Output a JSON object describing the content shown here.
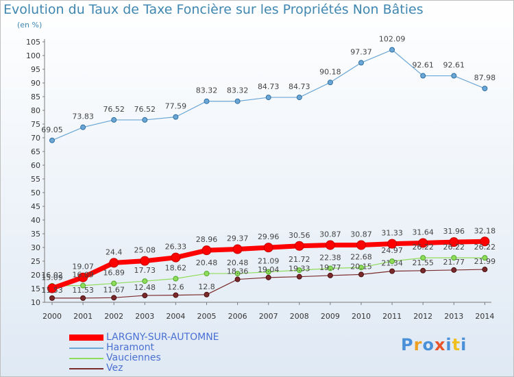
{
  "chart_data": {
    "type": "line",
    "title": "Evolution du Taux de Taxe Foncière sur les Propriétés Non Bâties",
    "subtitle": "(en %)",
    "x": [
      "2000",
      "2001",
      "2002",
      "2003",
      "2004",
      "2005",
      "2006",
      "2007",
      "2008",
      "2009",
      "2010",
      "2011",
      "2012",
      "2013",
      "2014"
    ],
    "yticks": [
      10,
      15,
      20,
      25,
      30,
      35,
      40,
      45,
      50,
      55,
      60,
      65,
      70,
      75,
      80,
      85,
      90,
      95,
      100,
      105
    ],
    "ylim": [
      10,
      105
    ],
    "grid": false,
    "legend_position": "bottom-left",
    "series": [
      {
        "name": "LARGNY-SUR-AUTOMNE",
        "color": "#ff0000",
        "values": [
          15.09,
          19.07,
          24.4,
          25.08,
          26.33,
          28.96,
          29.37,
          29.96,
          30.56,
          30.87,
          30.87,
          31.33,
          31.64,
          31.96,
          32.18
        ],
        "labels": [
          "15.09",
          "19.07",
          "24.4",
          "25.08",
          "26.33",
          "28.96",
          "29.37",
          "29.96",
          "30.56",
          "30.87",
          "30.87",
          "31.33",
          "31.64",
          "31.96",
          "32.18"
        ]
      },
      {
        "name": "Haramont",
        "color": "#6aa6d6",
        "values": [
          69.05,
          73.83,
          76.52,
          76.52,
          77.59,
          83.32,
          83.32,
          84.73,
          84.73,
          90.18,
          97.37,
          102.09,
          92.61,
          92.61,
          87.98
        ],
        "labels": [
          "69.05",
          "73.83",
          "76.52",
          "76.52",
          "77.59",
          "83.32",
          "83.32",
          "84.73",
          "84.73",
          "90.18",
          "97.37",
          "102.09",
          "92.61",
          "92.61",
          "87.98"
        ]
      },
      {
        "name": "Vauciennes",
        "color": "#8fdc5a",
        "values": [
          16.02,
          16.09,
          16.89,
          17.73,
          18.62,
          20.48,
          20.48,
          21.09,
          21.72,
          22.38,
          22.68,
          24.97,
          26.22,
          26.22,
          26.22
        ],
        "labels": [
          "16.02",
          "16.09",
          "16.89",
          "17.73",
          "18.62",
          "20.48",
          "20.48",
          "21.09",
          "21.72",
          "22.38",
          "22.68",
          "24.97",
          "26.22",
          "26.22",
          "26.22"
        ]
      },
      {
        "name": "Vez",
        "color": "#7a2a2a",
        "values": [
          11.53,
          11.53,
          11.67,
          12.48,
          12.6,
          12.8,
          18.36,
          19.04,
          19.33,
          19.77,
          20.15,
          21.34,
          21.55,
          21.77,
          21.99
        ],
        "labels": [
          "11.53",
          "11.53",
          "11.67",
          "12.48",
          "12.6",
          "12.8",
          "18.36",
          "19.04",
          "19.33",
          "19.77",
          "20.15",
          "21.34",
          "21.55",
          "21.77",
          "21.99"
        ]
      }
    ]
  },
  "brand": {
    "text": "Proxiti",
    "letter_colors": [
      "#4a90d9",
      "#f0a020",
      "#4a90d9",
      "#e8532a",
      "#4a90d9",
      "#f0c020",
      "#4a90d9"
    ]
  }
}
